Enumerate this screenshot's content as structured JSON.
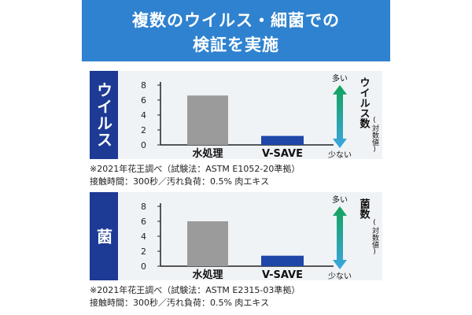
{
  "header": {
    "title_line1": "複数のウイルス・細菌での",
    "title_line2": "検証を実施"
  },
  "panels": [
    {
      "label": "ウイルス",
      "right_title": "ウイルス数",
      "right_sub": "(対数値)",
      "more": "多い",
      "less": "少ない",
      "note1": "※2021年花王調べ（試験法：ASTM E1052-20準拠）",
      "note2": "接触時間：300秒／汚れ負荷：0.5% 肉エキス"
    },
    {
      "label": "菌",
      "right_title": "菌数",
      "right_sub": "(対数値)",
      "more": "多い",
      "less": "少ない",
      "note1": "※2021年花王調べ（試験法：ASTM E2315-03準拠）",
      "note2": "接触時間：300秒／汚れ負荷：0.5% 肉エキス"
    }
  ],
  "colors": {
    "header": "#2f82cf",
    "label_bg": "#1d3a94",
    "bar_water": "#9b9b9b",
    "bar_vsave": "#1e47a8",
    "arrow_top": "#12a35a",
    "arrow_bottom": "#3aa6e0"
  },
  "chart_data": [
    {
      "type": "bar",
      "categories": [
        "水処理",
        "V-SAVE"
      ],
      "values": [
        6.6,
        1.2
      ],
      "ylim": [
        0,
        8
      ],
      "yticks": [
        0,
        2,
        4,
        6,
        8
      ],
      "ylabel": "ウイルス数(対数値)",
      "grid": false
    },
    {
      "type": "bar",
      "categories": [
        "水処理",
        "V-SAVE"
      ],
      "values": [
        6.0,
        1.4
      ],
      "ylim": [
        0,
        8
      ],
      "yticks": [
        0,
        2,
        4,
        6,
        8
      ],
      "ylabel": "菌数(対数値)",
      "grid": false
    }
  ]
}
